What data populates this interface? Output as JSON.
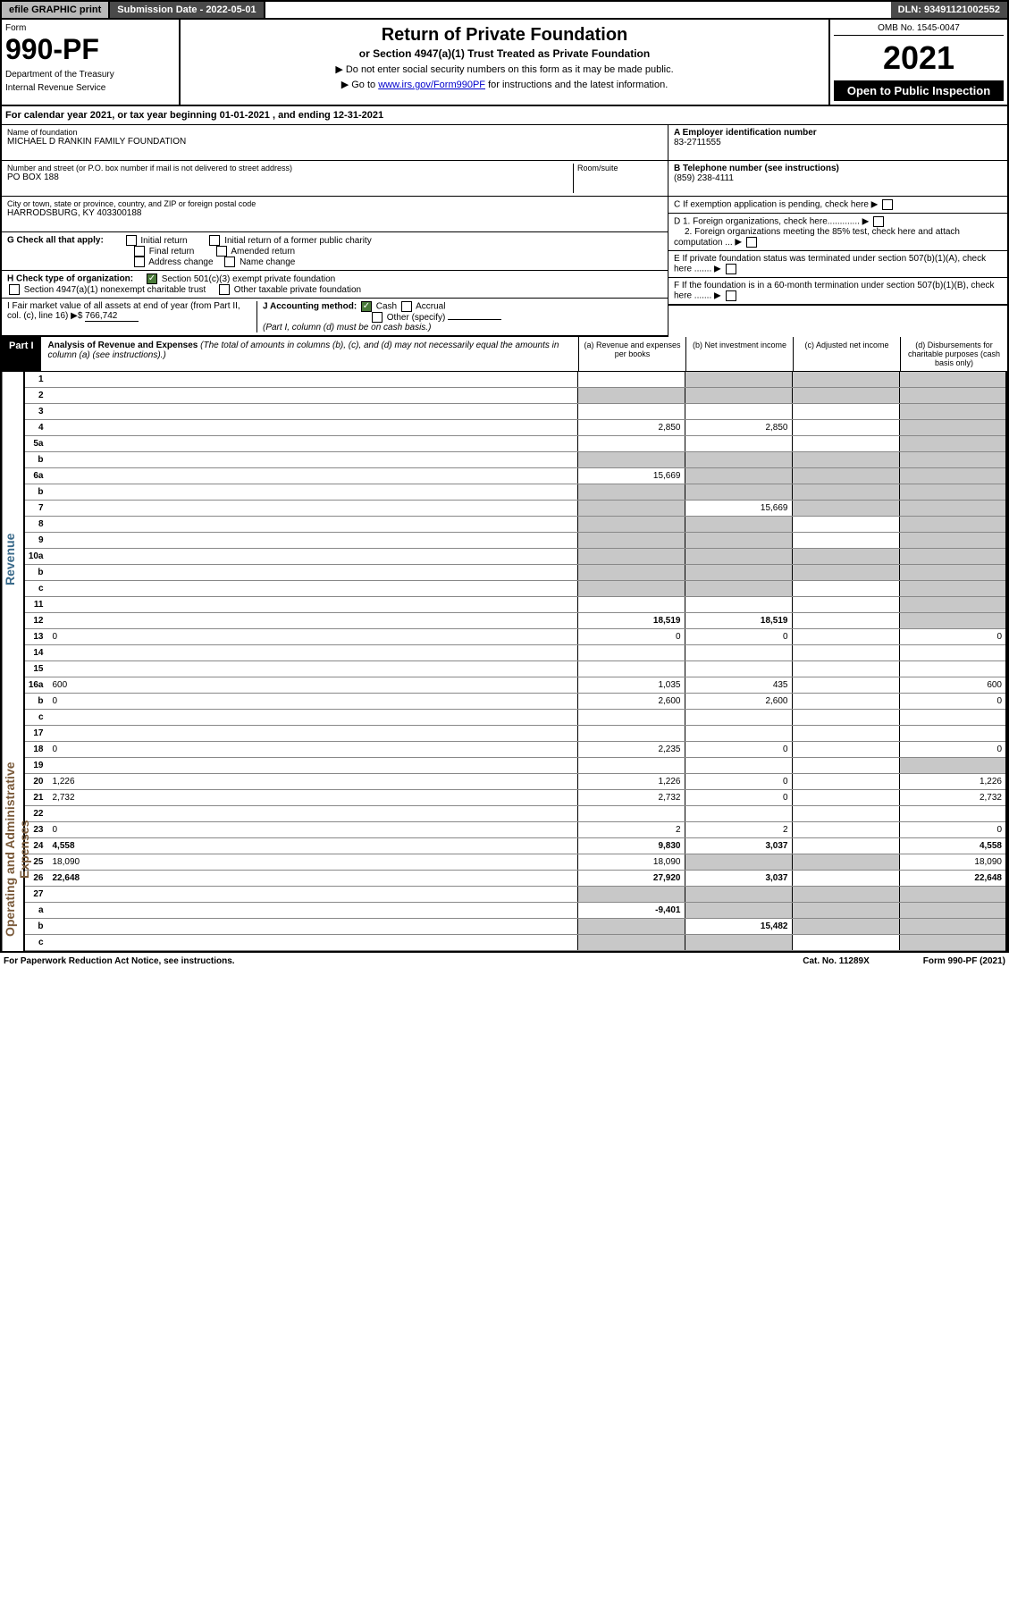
{
  "topbar": {
    "efile": "efile GRAPHIC print",
    "submission": "Submission Date - 2022-05-01",
    "dln": "DLN: 93491121002552"
  },
  "header": {
    "form_label": "Form",
    "form_num": "990-PF",
    "dept1": "Department of the Treasury",
    "dept2": "Internal Revenue Service",
    "title": "Return of Private Foundation",
    "subtitle": "or Section 4947(a)(1) Trust Treated as Private Foundation",
    "note1": "▶ Do not enter social security numbers on this form as it may be made public.",
    "note2_pre": "▶ Go to ",
    "note2_link": "www.irs.gov/Form990PF",
    "note2_post": " for instructions and the latest information.",
    "omb": "OMB No. 1545-0047",
    "year": "2021",
    "open_pub": "Open to Public Inspection"
  },
  "calyear": "For calendar year 2021, or tax year beginning 01-01-2021                           , and ending 12-31-2021",
  "ident": {
    "name_label": "Name of foundation",
    "name": "MICHAEL D RANKIN FAMILY FOUNDATION",
    "addr_label": "Number and street (or P.O. box number if mail is not delivered to street address)",
    "addr": "PO BOX 188",
    "room_label": "Room/suite",
    "city_label": "City or town, state or province, country, and ZIP or foreign postal code",
    "city": "HARRODSBURG, KY  403300188",
    "ein_label": "A Employer identification number",
    "ein": "83-2711555",
    "phone_label": "B Telephone number (see instructions)",
    "phone": "(859) 238-4111",
    "c_label": "C If exemption application is pending, check here",
    "d1": "D 1. Foreign organizations, check here.............",
    "d2": "2. Foreign organizations meeting the 85% test, check here and attach computation ...",
    "e": "E  If private foundation status was terminated under section 507(b)(1)(A), check here .......",
    "f": "F  If the foundation is in a 60-month termination under section 507(b)(1)(B), check here ......."
  },
  "g": {
    "label": "G Check all that apply:",
    "opts": [
      "Initial return",
      "Final return",
      "Address change",
      "Initial return of a former public charity",
      "Amended return",
      "Name change"
    ]
  },
  "h": {
    "label": "H Check type of organization:",
    "opt1": "Section 501(c)(3) exempt private foundation",
    "opt2": "Section 4947(a)(1) nonexempt charitable trust",
    "opt3": "Other taxable private foundation"
  },
  "i": {
    "label": "I Fair market value of all assets at end of year (from Part II, col. (c), line 16) ▶$",
    "val": "766,742"
  },
  "j": {
    "label": "J Accounting method:",
    "cash": "Cash",
    "accrual": "Accrual",
    "other": "Other (specify)",
    "note": "(Part I, column (d) must be on cash basis.)"
  },
  "part1": {
    "label": "Part I",
    "title": "Analysis of Revenue and Expenses",
    "note": "(The total of amounts in columns (b), (c), and (d) may not necessarily equal the amounts in column (a) (see instructions).)",
    "col_a": "(a)   Revenue and expenses per books",
    "col_b": "(b)   Net investment income",
    "col_c": "(c)   Adjusted net income",
    "col_d": "(d)   Disbursements for charitable purposes (cash basis only)"
  },
  "side": {
    "revenue": "Revenue",
    "expenses": "Operating and Administrative Expenses"
  },
  "rows": [
    {
      "n": "1",
      "d": "",
      "a": "",
      "b": "",
      "c": "",
      "sb": true,
      "sc": true,
      "sd": true
    },
    {
      "n": "2",
      "d": "",
      "a": "",
      "b": "",
      "c": "",
      "sa": true,
      "sb": true,
      "sc": true,
      "sd": true
    },
    {
      "n": "3",
      "d": "",
      "a": "",
      "b": "",
      "c": "",
      "sd": true
    },
    {
      "n": "4",
      "d": "",
      "a": "2,850",
      "b": "2,850",
      "c": "",
      "sd": true
    },
    {
      "n": "5a",
      "d": "",
      "a": "",
      "b": "",
      "c": "",
      "sd": true
    },
    {
      "n": "b",
      "d": "",
      "a": "",
      "b": "",
      "c": "",
      "sa": true,
      "sb": true,
      "sc": true,
      "sd": true
    },
    {
      "n": "6a",
      "d": "",
      "a": "15,669",
      "b": "",
      "c": "",
      "sb": true,
      "sc": true,
      "sd": true
    },
    {
      "n": "b",
      "d": "",
      "a": "",
      "b": "",
      "c": "",
      "sa": true,
      "sb": true,
      "sc": true,
      "sd": true
    },
    {
      "n": "7",
      "d": "",
      "a": "",
      "b": "15,669",
      "c": "",
      "sa": true,
      "sc": true,
      "sd": true
    },
    {
      "n": "8",
      "d": "",
      "a": "",
      "b": "",
      "c": "",
      "sa": true,
      "sb": true,
      "sd": true
    },
    {
      "n": "9",
      "d": "",
      "a": "",
      "b": "",
      "c": "",
      "sa": true,
      "sb": true,
      "sd": true
    },
    {
      "n": "10a",
      "d": "",
      "a": "",
      "b": "",
      "c": "",
      "sa": true,
      "sb": true,
      "sc": true,
      "sd": true
    },
    {
      "n": "b",
      "d": "",
      "a": "",
      "b": "",
      "c": "",
      "sa": true,
      "sb": true,
      "sc": true,
      "sd": true
    },
    {
      "n": "c",
      "d": "",
      "a": "",
      "b": "",
      "c": "",
      "sa": true,
      "sb": true,
      "sd": true
    },
    {
      "n": "11",
      "d": "",
      "a": "",
      "b": "",
      "c": "",
      "sd": true
    },
    {
      "n": "12",
      "d": "",
      "a": "18,519",
      "b": "18,519",
      "c": "",
      "bold": true,
      "sd": true
    },
    {
      "n": "13",
      "d": "0",
      "a": "0",
      "b": "0",
      "c": ""
    },
    {
      "n": "14",
      "d": "",
      "a": "",
      "b": "",
      "c": ""
    },
    {
      "n": "15",
      "d": "",
      "a": "",
      "b": "",
      "c": ""
    },
    {
      "n": "16a",
      "d": "600",
      "a": "1,035",
      "b": "435",
      "c": ""
    },
    {
      "n": "b",
      "d": "0",
      "a": "2,600",
      "b": "2,600",
      "c": ""
    },
    {
      "n": "c",
      "d": "",
      "a": "",
      "b": "",
      "c": ""
    },
    {
      "n": "17",
      "d": "",
      "a": "",
      "b": "",
      "c": ""
    },
    {
      "n": "18",
      "d": "0",
      "a": "2,235",
      "b": "0",
      "c": ""
    },
    {
      "n": "19",
      "d": "",
      "a": "",
      "b": "",
      "c": "",
      "sd": true
    },
    {
      "n": "20",
      "d": "1,226",
      "a": "1,226",
      "b": "0",
      "c": ""
    },
    {
      "n": "21",
      "d": "2,732",
      "a": "2,732",
      "b": "0",
      "c": ""
    },
    {
      "n": "22",
      "d": "",
      "a": "",
      "b": "",
      "c": ""
    },
    {
      "n": "23",
      "d": "0",
      "a": "2",
      "b": "2",
      "c": ""
    },
    {
      "n": "24",
      "d": "4,558",
      "a": "9,830",
      "b": "3,037",
      "c": "",
      "bold": true
    },
    {
      "n": "25",
      "d": "18,090",
      "a": "18,090",
      "b": "",
      "c": "",
      "sb": true,
      "sc": true
    },
    {
      "n": "26",
      "d": "22,648",
      "a": "27,920",
      "b": "3,037",
      "c": "",
      "bold": true
    },
    {
      "n": "27",
      "d": "",
      "a": "",
      "b": "",
      "c": "",
      "sa": true,
      "sb": true,
      "sc": true,
      "sd": true
    },
    {
      "n": "a",
      "d": "",
      "a": "-9,401",
      "b": "",
      "c": "",
      "bold": true,
      "sb": true,
      "sc": true,
      "sd": true
    },
    {
      "n": "b",
      "d": "",
      "a": "",
      "b": "15,482",
      "c": "",
      "bold": true,
      "sa": true,
      "sc": true,
      "sd": true
    },
    {
      "n": "c",
      "d": "",
      "a": "",
      "b": "",
      "c": "",
      "bold": true,
      "sa": true,
      "sb": true,
      "sd": true
    }
  ],
  "footer": {
    "left": "For Paperwork Reduction Act Notice, see instructions.",
    "mid": "Cat. No. 11289X",
    "right": "Form 990-PF (2021)"
  }
}
